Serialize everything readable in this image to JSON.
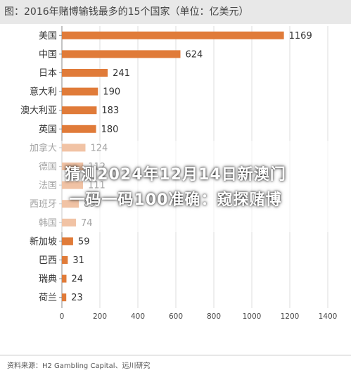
{
  "title": "图：2016年赌博输钱最多的15个国家（单位：亿美元）",
  "overlay": {
    "line1": "猜测2024年12月14日新澳门",
    "line2": "一码一码100准确：窥探赌博"
  },
  "source": "资料来源：H2 Gambling Capital、远川研究",
  "chart_data": {
    "type": "bar",
    "orientation": "horizontal",
    "categories": [
      "美国",
      "中国",
      "日本",
      "意大利",
      "澳大利亚",
      "英国",
      "加拿大",
      "德国",
      "法国",
      "西班牙",
      "韩国",
      "新加坡",
      "巴西",
      "瑞典",
      "荷兰"
    ],
    "values": [
      1169,
      624,
      241,
      190,
      183,
      180,
      124,
      112,
      111,
      89,
      74,
      59,
      31,
      24,
      23
    ],
    "value_labels": [
      "1169",
      "624",
      "241",
      "190",
      "183",
      "180",
      "124",
      "112",
      "111",
      "89",
      "74",
      "59",
      "31",
      "24",
      "23"
    ],
    "xlim": [
      0,
      1400
    ],
    "x_ticks": [
      0,
      200,
      400,
      600,
      800,
      1000,
      1200,
      1400
    ],
    "grid": true,
    "bar_color": "#e07b39"
  }
}
